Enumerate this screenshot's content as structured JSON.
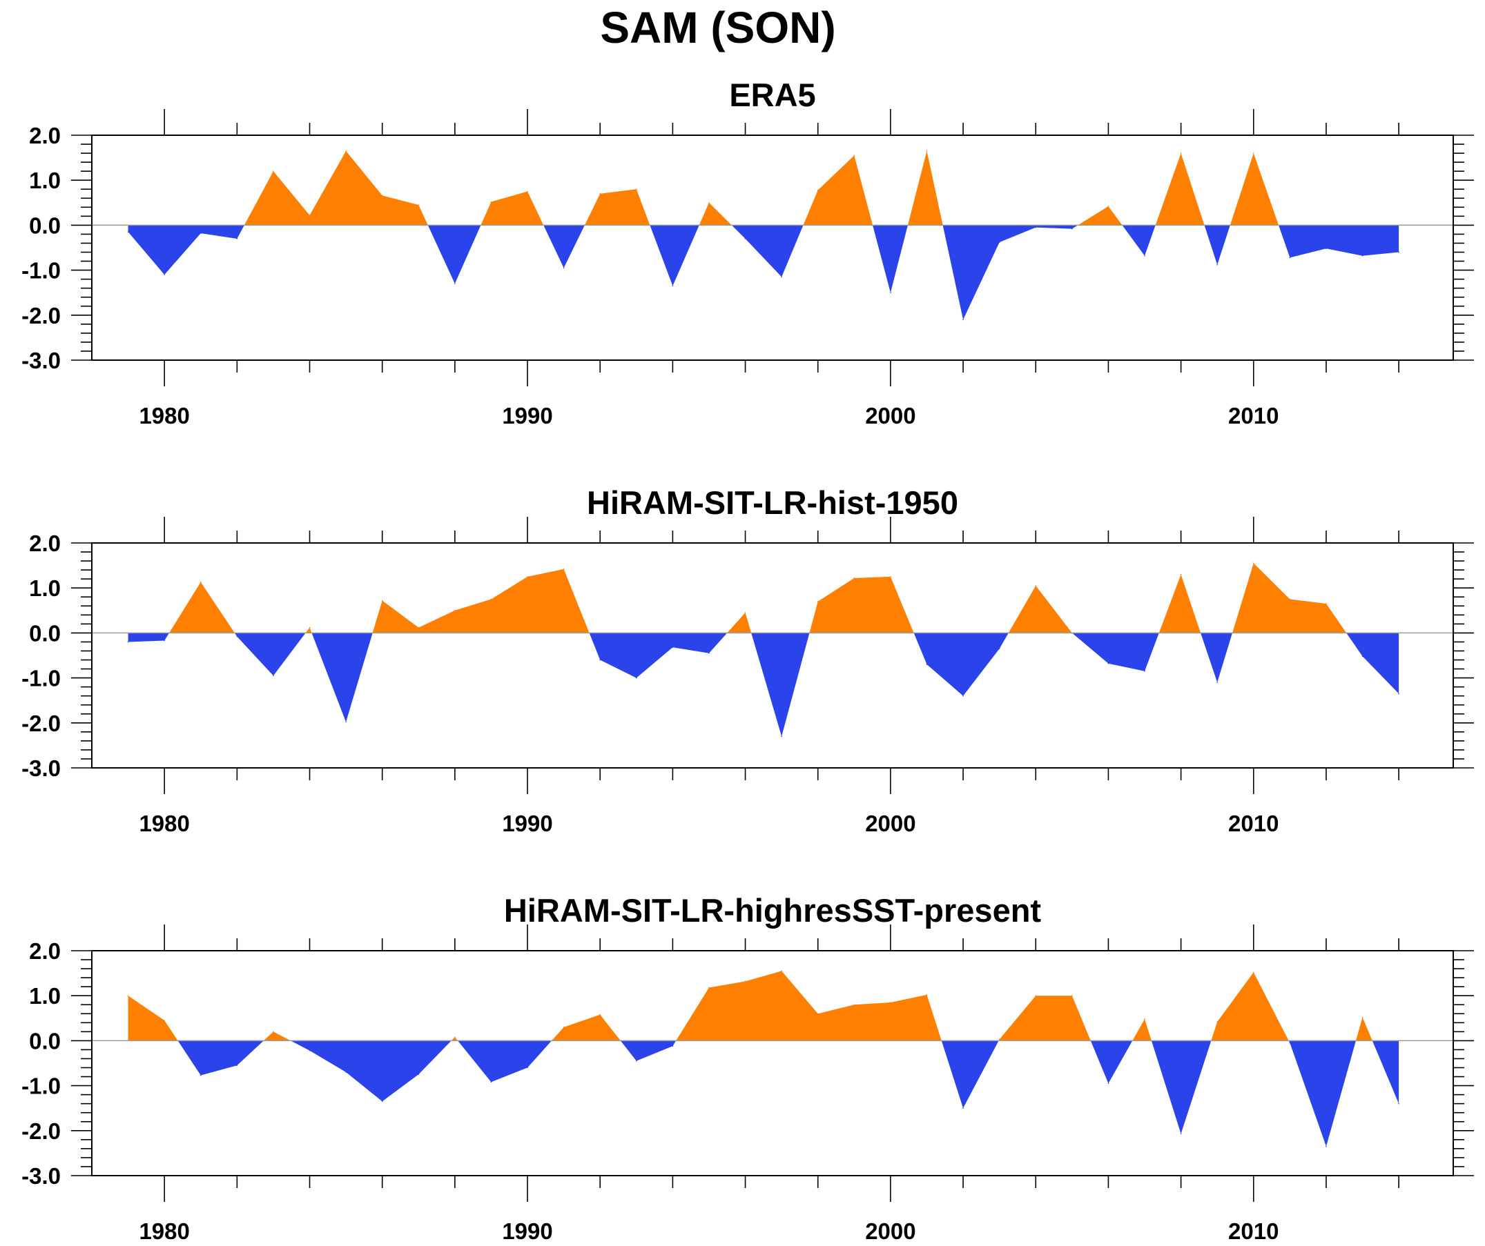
{
  "figure_title": "SAM (SON)",
  "colors": {
    "positive": "#ff8000",
    "negative": "#2a43ea",
    "axis": "#000000",
    "zero_line": "#9a9a9a"
  },
  "chart_data": [
    {
      "type": "area",
      "title": "ERA5",
      "xlabel": "",
      "ylabel": "",
      "xlim": [
        1978,
        2015.5
      ],
      "ylim": [
        -3.0,
        2.0
      ],
      "x_ticks": [
        "1980",
        "1990",
        "2000",
        "2010"
      ],
      "y_ticks": [
        "2.0",
        "1.0",
        "0.0",
        "-1.0",
        "-2.0",
        "-3.0"
      ],
      "grid": false,
      "series": [
        {
          "x": [
            1979,
            1980,
            1981,
            1982,
            1983,
            1984,
            1985,
            1986,
            1987,
            1988,
            1989,
            1990,
            1991,
            1992,
            1993,
            1994,
            1995,
            1996,
            1997,
            1998,
            1999,
            2000,
            2001,
            2002,
            2003,
            2004,
            2005,
            2006,
            2007,
            2008,
            2009,
            2010,
            2011,
            2012,
            2013,
            2014
          ],
          "values": [
            -0.15,
            -1.1,
            -0.18,
            -0.3,
            1.2,
            0.22,
            1.65,
            0.66,
            0.45,
            -1.3,
            0.52,
            0.75,
            -0.95,
            0.7,
            0.8,
            -1.35,
            0.5,
            -0.3,
            -1.15,
            0.78,
            1.55,
            -1.5,
            1.65,
            -2.1,
            -0.38,
            -0.05,
            -0.08,
            0.42,
            -0.68,
            1.6,
            -0.88,
            1.6,
            -0.72,
            -0.52,
            -0.68,
            -0.6
          ]
        }
      ]
    },
    {
      "type": "area",
      "title": "HiRAM-SIT-LR-hist-1950",
      "xlabel": "",
      "ylabel": "",
      "xlim": [
        1978,
        2015.5
      ],
      "ylim": [
        -3.0,
        2.0
      ],
      "x_ticks": [
        "1980",
        "1990",
        "2000",
        "2010"
      ],
      "y_ticks": [
        "2.0",
        "1.0",
        "0.0",
        "-1.0",
        "-2.0",
        "-3.0"
      ],
      "grid": false,
      "series": [
        {
          "x": [
            1979,
            1980,
            1981,
            1982,
            1983,
            1984,
            1985,
            1986,
            1987,
            1988,
            1989,
            1990,
            1991,
            1992,
            1993,
            1994,
            1995,
            1996,
            1997,
            1998,
            1999,
            2000,
            2001,
            2002,
            2003,
            2004,
            2005,
            2006,
            2007,
            2008,
            2009,
            2010,
            2011,
            2012,
            2013,
            2014
          ],
          "values": [
            -0.2,
            -0.17,
            1.13,
            -0.08,
            -0.95,
            0.12,
            -1.98,
            0.72,
            0.12,
            0.5,
            0.75,
            1.25,
            1.42,
            -0.6,
            -1.0,
            -0.32,
            -0.45,
            0.45,
            -2.3,
            0.7,
            1.22,
            1.25,
            -0.7,
            -1.4,
            -0.35,
            1.05,
            0.0,
            -0.68,
            -0.85,
            1.3,
            -1.1,
            1.55,
            0.75,
            0.65,
            -0.52,
            -1.35
          ]
        }
      ]
    },
    {
      "type": "area",
      "title": "HiRAM-SIT-LR-highresSST-present",
      "xlabel": "",
      "ylabel": "",
      "xlim": [
        1978,
        2015.5
      ],
      "ylim": [
        -3.0,
        2.0
      ],
      "x_ticks": [
        "1980",
        "1990",
        "2000",
        "2010"
      ],
      "y_ticks": [
        "2.0",
        "1.0",
        "0.0",
        "-1.0",
        "-2.0",
        "-3.0"
      ],
      "grid": false,
      "series": [
        {
          "x": [
            1979,
            1980,
            1981,
            1982,
            1983,
            1984,
            1985,
            1986,
            1987,
            1988,
            1989,
            1990,
            1991,
            1992,
            1993,
            1994,
            1995,
            1996,
            1997,
            1998,
            1999,
            2000,
            2001,
            2002,
            2003,
            2004,
            2005,
            2006,
            2007,
            2008,
            2009,
            2010,
            2011,
            2012,
            2013,
            2014
          ],
          "values": [
            1.0,
            0.45,
            -0.77,
            -0.55,
            0.2,
            -0.22,
            -0.7,
            -1.35,
            -0.75,
            0.08,
            -0.92,
            -0.6,
            0.3,
            0.58,
            -0.45,
            -0.12,
            1.18,
            1.32,
            1.55,
            0.6,
            0.8,
            0.85,
            1.02,
            -1.5,
            0.03,
            1.0,
            1.0,
            -0.95,
            0.48,
            -2.07,
            0.42,
            1.52,
            -0.05,
            -2.35,
            0.52,
            -1.4
          ]
        }
      ]
    }
  ]
}
